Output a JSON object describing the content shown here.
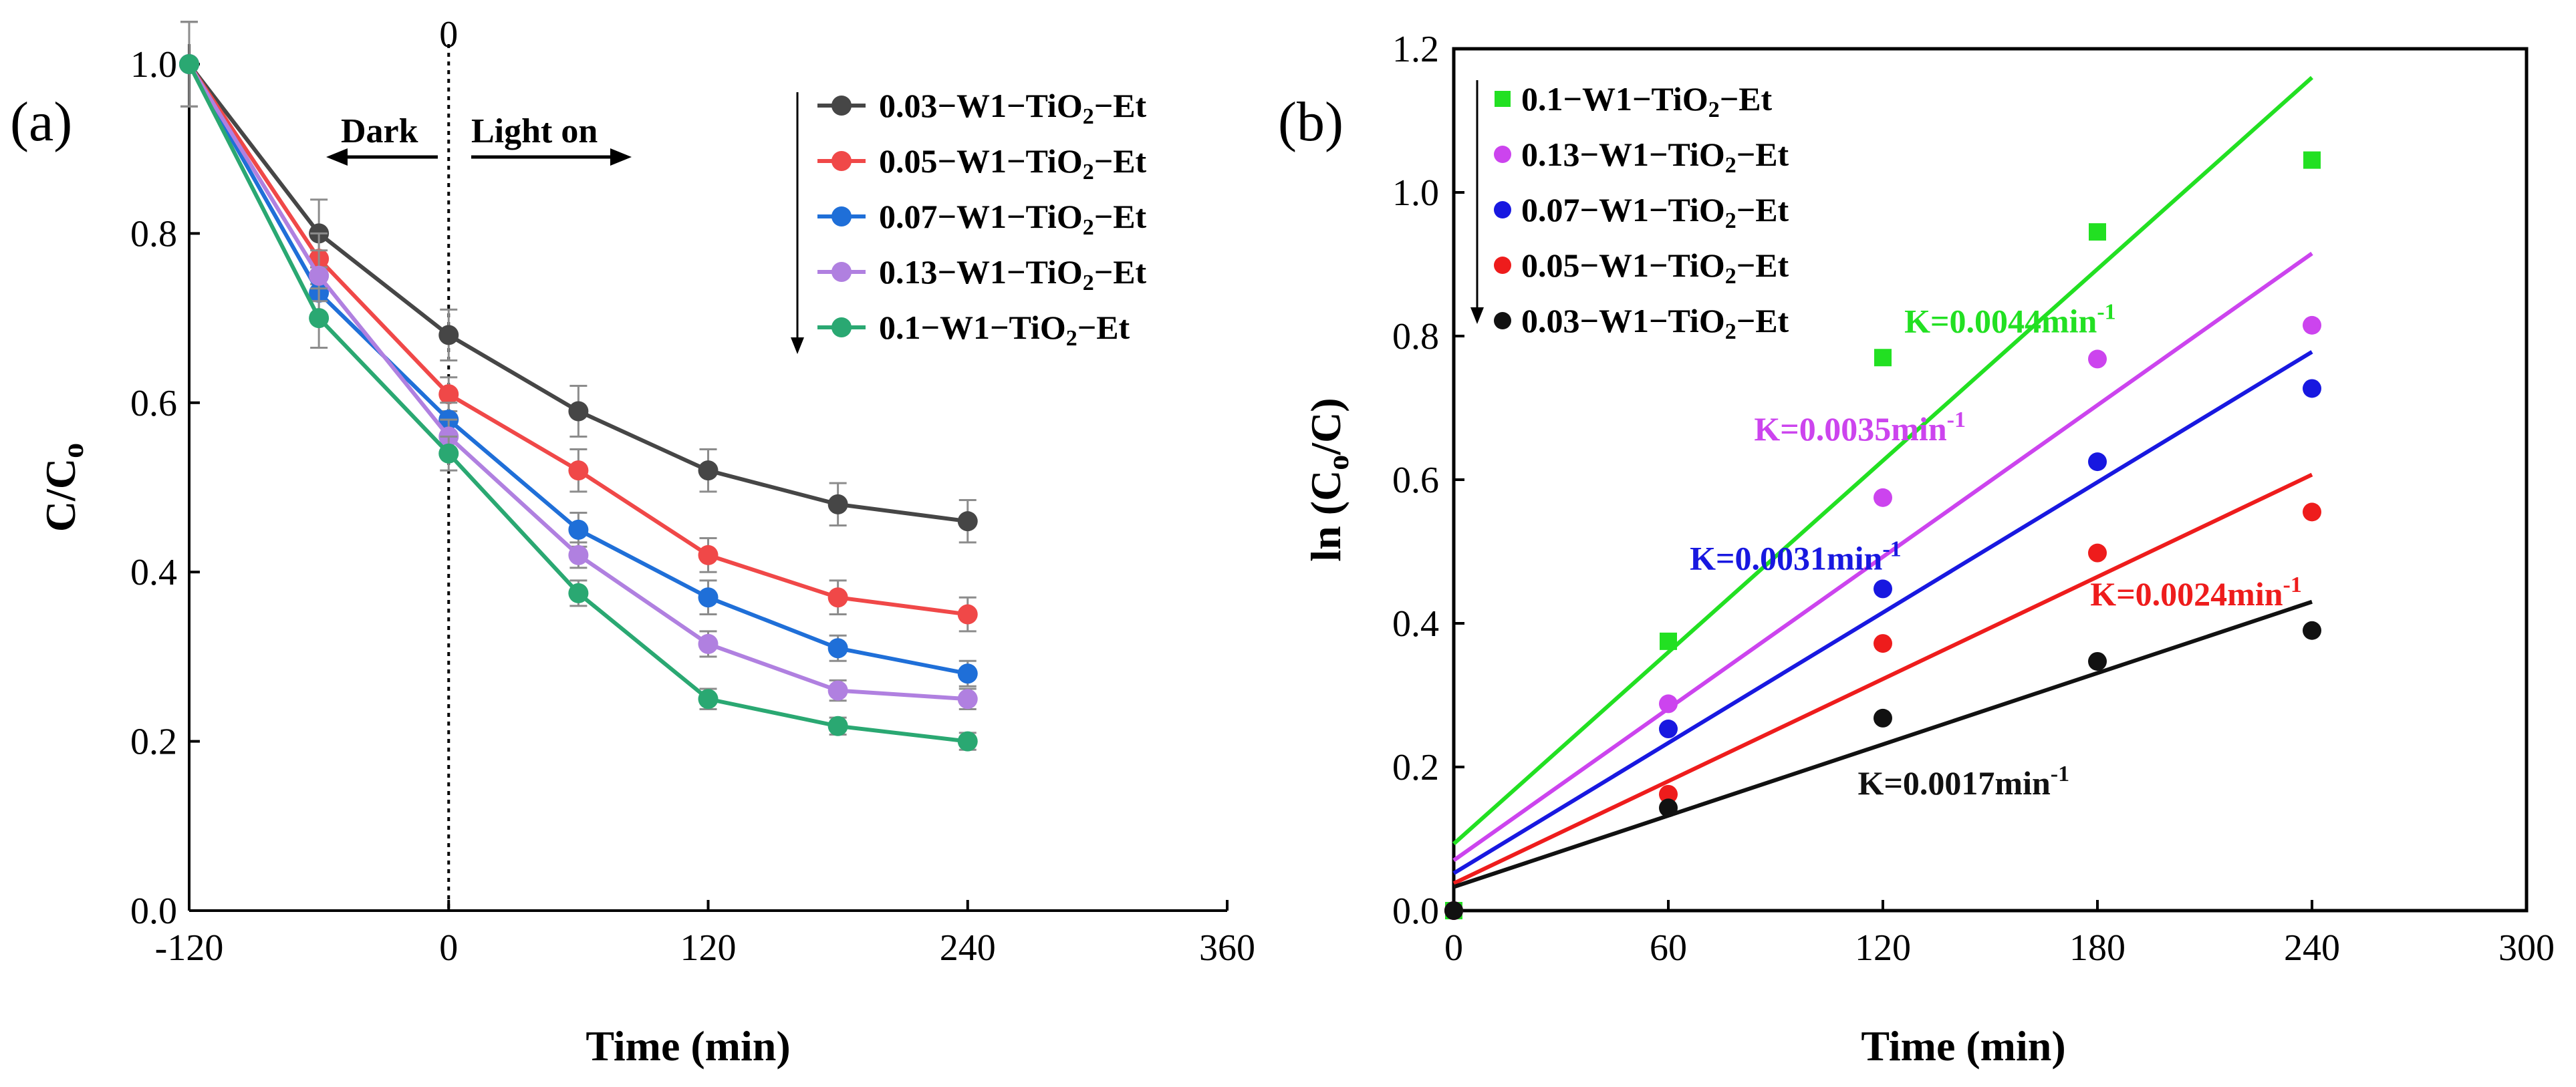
{
  "chart_data": [
    {
      "panel": "(a)",
      "type": "line",
      "xlabel": "Time (min)",
      "ylabel": "C/C",
      "ylabel_sub": "o",
      "xlim": [
        -120,
        360
      ],
      "ylim": [
        0.0,
        1.0
      ],
      "xticks": [
        -120,
        0,
        120,
        240,
        360
      ],
      "yticks": [
        0.0,
        0.2,
        0.4,
        0.6,
        0.8,
        1.0
      ],
      "xtick_labels": [
        "-120",
        "0",
        "120",
        "240",
        "360"
      ],
      "ytick_labels": [
        "0.0",
        "0.2",
        "0.4",
        "0.6",
        "0.8",
        "1.0"
      ],
      "top_marker_label": "0",
      "annotations": {
        "dark": "Dark",
        "light": "Light on"
      },
      "legend_position": "top-right",
      "x": [
        -120,
        -60,
        0,
        60,
        120,
        180,
        240
      ],
      "series": [
        {
          "prefix": "0.03−W1−TiO",
          "sub": "2",
          "suffix": "−Et",
          "color": "#464646",
          "values": [
            1.0,
            0.8,
            0.68,
            0.59,
            0.52,
            0.48,
            0.46
          ],
          "errors": [
            0.05,
            0.04,
            0.03,
            0.03,
            0.025,
            0.025,
            0.025
          ]
        },
        {
          "prefix": "0.05−W1−TiO",
          "sub": "2",
          "suffix": "−Et",
          "color": "#f04848",
          "values": [
            1.0,
            0.77,
            0.61,
            0.52,
            0.42,
            0.37,
            0.35
          ],
          "errors": [
            0.05,
            0.03,
            0.02,
            0.025,
            0.02,
            0.02,
            0.02
          ]
        },
        {
          "prefix": "0.07−W1−TiO",
          "sub": "2",
          "suffix": "−Et",
          "color": "#1f6fd8",
          "values": [
            1.0,
            0.73,
            0.58,
            0.45,
            0.37,
            0.31,
            0.28
          ],
          "errors": [
            0.05,
            0.03,
            0.02,
            0.02,
            0.02,
            0.015,
            0.015
          ]
        },
        {
          "prefix": "0.13−W1−TiO",
          "sub": "2",
          "suffix": "−Et",
          "color": "#b080e0",
          "values": [
            1.0,
            0.75,
            0.56,
            0.42,
            0.315,
            0.26,
            0.25
          ],
          "errors": [
            0.05,
            0.03,
            0.02,
            0.015,
            0.015,
            0.012,
            0.012
          ]
        },
        {
          "prefix": "0.1−W1−TiO",
          "sub": "2",
          "suffix": "−Et",
          "color": "#2aa872",
          "values": [
            1.0,
            0.7,
            0.54,
            0.375,
            0.25,
            0.218,
            0.2
          ],
          "errors": [
            0.05,
            0.035,
            0.02,
            0.015,
            0.012,
            0.01,
            0.01
          ]
        }
      ]
    },
    {
      "panel": "(b)",
      "type": "scatter",
      "xlabel": "Time (min)",
      "ylabel_pre": "ln (C",
      "ylabel_sub": "o",
      "ylabel_post": "/C)",
      "xlim": [
        0,
        300
      ],
      "ylim": [
        0.0,
        1.2
      ],
      "xticks": [
        0,
        60,
        120,
        180,
        240,
        300
      ],
      "yticks": [
        0.0,
        0.2,
        0.4,
        0.6,
        0.8,
        1.0,
        1.2
      ],
      "xtick_labels": [
        "0",
        "60",
        "120",
        "180",
        "240",
        "300"
      ],
      "ytick_labels": [
        "0.0",
        "0.2",
        "0.4",
        "0.6",
        "0.8",
        "1.0",
        "1.2"
      ],
      "legend_position": "top-left",
      "x": [
        0,
        60,
        120,
        180,
        240
      ],
      "series": [
        {
          "prefix": "0.1−W1−TiO",
          "sub": "2",
          "suffix": "−Et",
          "color": "#22e022",
          "marker": "square",
          "values": [
            0.0,
            0.375,
            0.77,
            0.945,
            1.045
          ],
          "fit": {
            "intercept": 0.093,
            "end": 1.16
          },
          "k_label": "K=0.0044min",
          "k_sup": "-1",
          "k_at": [
            126,
            0.805
          ]
        },
        {
          "prefix": "0.13−W1−TiO",
          "sub": "2",
          "suffix": "−Et",
          "color": "#cc44ee",
          "marker": "circle",
          "values": [
            0.0,
            0.288,
            0.575,
            0.768,
            0.815
          ],
          "fit": {
            "intercept": 0.07,
            "end": 0.915
          },
          "k_label": "K=0.0035min",
          "k_sup": "-1",
          "k_at": [
            84,
            0.655
          ]
        },
        {
          "prefix": "0.07−W1−TiO",
          "sub": "2",
          "suffix": "−Et",
          "color": "#1818e0",
          "marker": "circle",
          "values": [
            0.0,
            0.253,
            0.448,
            0.625,
            0.727
          ],
          "fit": {
            "intercept": 0.052,
            "end": 0.778
          },
          "k_label": "K=0.0031min",
          "k_sup": "-1",
          "k_at": [
            66,
            0.475
          ]
        },
        {
          "prefix": "0.05−W1−TiO",
          "sub": "2",
          "suffix": "−Et",
          "color": "#ee1c1c",
          "marker": "circle",
          "values": [
            0.0,
            0.162,
            0.372,
            0.498,
            0.555
          ],
          "fit": {
            "intercept": 0.038,
            "end": 0.607
          },
          "k_label": "K=0.0024min",
          "k_sup": "-1",
          "k_at": [
            178,
            0.425
          ]
        },
        {
          "prefix": "0.03−W1−TiO",
          "sub": "2",
          "suffix": "−Et",
          "color": "#111111",
          "marker": "circle",
          "values": [
            0.0,
            0.143,
            0.268,
            0.347,
            0.39
          ],
          "fit": {
            "intercept": 0.033,
            "end": 0.43
          },
          "k_label": "K=0.0017min",
          "k_sup": "-1",
          "k_at": [
            113,
            0.162
          ]
        }
      ]
    }
  ]
}
